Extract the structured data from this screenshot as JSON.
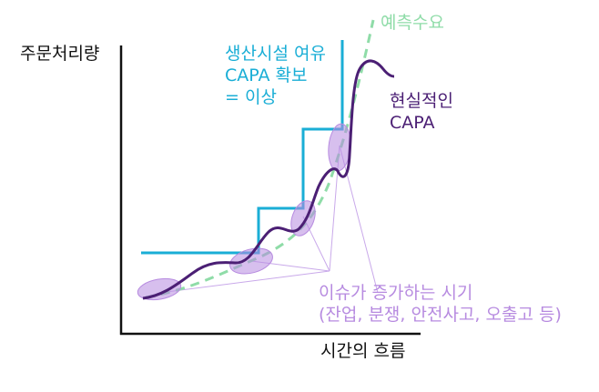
{
  "y_axis_label": "주문처리량",
  "x_axis_label": "시간의 흐름",
  "ideal_capacity_label": [
    "생산시설 여유",
    "CAPA 확보",
    "= 이상"
  ],
  "real_capacity_label": [
    "현실적인",
    "CAPA"
  ],
  "demand_label": "예측수요",
  "issue_label": [
    "이슈가 증가하는 시기",
    "(잔업, 분쟁, 안전사고, 오출고 등)"
  ],
  "colors": {
    "axis": "#111111",
    "ideal_capacity": "#1aaed6",
    "real_capacity": "#4b1f74",
    "demand": "#8fdca8",
    "issue": "#b78be0"
  }
}
